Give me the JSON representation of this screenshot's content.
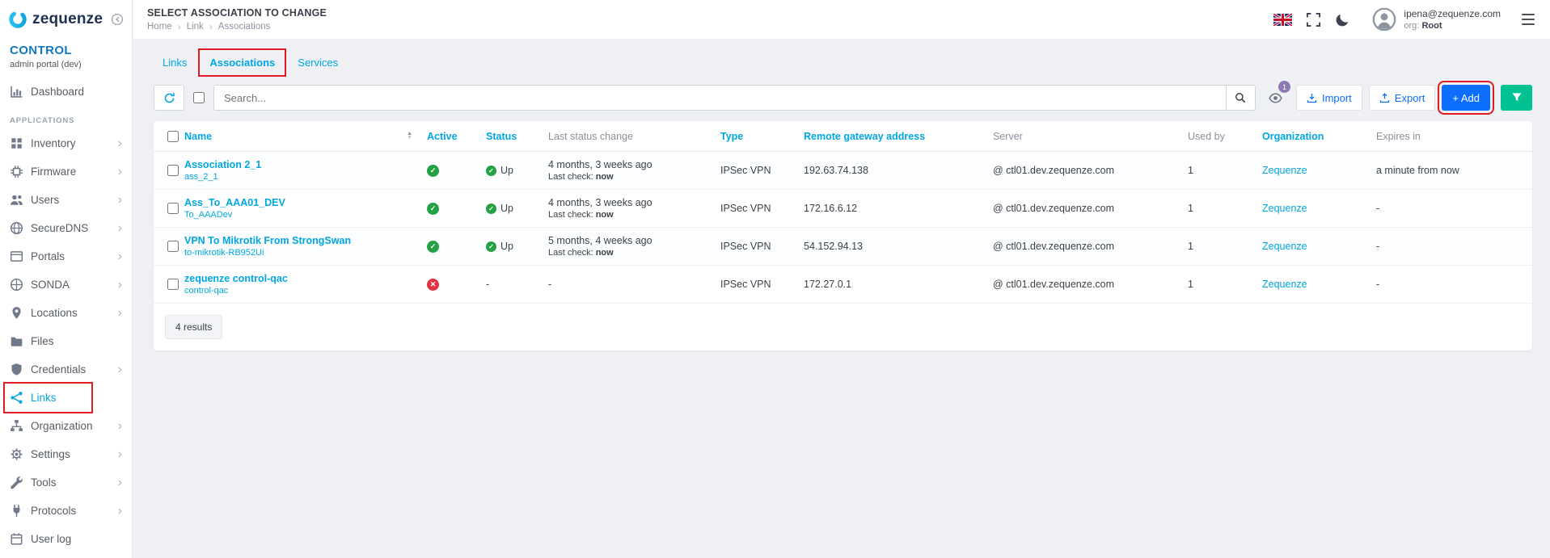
{
  "colors": {
    "accent": "#00a7e1",
    "primary": "#0c6efd",
    "success": "#23a144",
    "danger": "#e03444",
    "teal": "#00c292",
    "annotation": "#e01b24",
    "badge_purple": "#8d7ab5"
  },
  "brand": {
    "logo_text": "zequenze",
    "portal_title": "CONTROL",
    "portal_subtitle": "admin portal (dev)"
  },
  "sidebar": {
    "dashboard_label": "Dashboard",
    "section_label": "APPLICATIONS",
    "items": [
      {
        "label": "Inventory",
        "icon": "inventory",
        "chevron": true,
        "active": false,
        "annotated": false
      },
      {
        "label": "Firmware",
        "icon": "chip",
        "chevron": true,
        "active": false,
        "annotated": false
      },
      {
        "label": "Users",
        "icon": "users",
        "chevron": true,
        "active": false,
        "annotated": false
      },
      {
        "label": "SecureDNS",
        "icon": "globe",
        "chevron": true,
        "active": false,
        "annotated": false
      },
      {
        "label": "Portals",
        "icon": "window",
        "chevron": true,
        "active": false,
        "annotated": false
      },
      {
        "label": "SONDA",
        "icon": "globe2",
        "chevron": true,
        "active": false,
        "annotated": false
      },
      {
        "label": "Locations",
        "icon": "pin",
        "chevron": true,
        "active": false,
        "annotated": false
      },
      {
        "label": "Files",
        "icon": "folder",
        "chevron": false,
        "active": false,
        "annotated": false
      },
      {
        "label": "Credentials",
        "icon": "shield",
        "chevron": true,
        "active": false,
        "annotated": false
      },
      {
        "label": "Links",
        "icon": "share",
        "chevron": false,
        "active": true,
        "annotated": true
      },
      {
        "label": "Organization",
        "icon": "sitemap",
        "chevron": true,
        "active": false,
        "annotated": false
      },
      {
        "label": "Settings",
        "icon": "gear",
        "chevron": true,
        "active": false,
        "annotated": false
      },
      {
        "label": "Tools",
        "icon": "wrench",
        "chevron": true,
        "active": false,
        "annotated": false
      },
      {
        "label": "Protocols",
        "icon": "plug",
        "chevron": true,
        "active": false,
        "annotated": false
      },
      {
        "label": "User log",
        "icon": "calendar",
        "chevron": false,
        "active": false,
        "annotated": false
      }
    ]
  },
  "header": {
    "title": "SELECT ASSOCIATION TO CHANGE",
    "breadcrumb": [
      "Home",
      "Link",
      "Associations"
    ],
    "user": {
      "email": "ipena@zequenze.com",
      "org_label": "org:",
      "org_value": "Root"
    }
  },
  "tabs": [
    {
      "label": "Links",
      "active": false,
      "annotated": false
    },
    {
      "label": "Associations",
      "active": true,
      "annotated": true
    },
    {
      "label": "Services",
      "active": false,
      "annotated": false
    }
  ],
  "toolbar": {
    "search_placeholder": "Search...",
    "eye_badge": "1",
    "import_label": "Import",
    "export_label": "Export",
    "add_label": "+ Add"
  },
  "table": {
    "columns": [
      {
        "label": "Name",
        "sortable": true,
        "sort_icon": true
      },
      {
        "label": "Active",
        "sortable": true,
        "sort_icon": false
      },
      {
        "label": "Status",
        "sortable": true,
        "sort_icon": false
      },
      {
        "label": "Last status change",
        "sortable": false,
        "sort_icon": false
      },
      {
        "label": "Type",
        "sortable": true,
        "sort_icon": false
      },
      {
        "label": "Remote gateway address",
        "sortable": true,
        "sort_icon": false
      },
      {
        "label": "Server",
        "sortable": false,
        "sort_icon": false
      },
      {
        "label": "Used by",
        "sortable": false,
        "sort_icon": false
      },
      {
        "label": "Organization",
        "sortable": true,
        "sort_icon": false
      },
      {
        "label": "Expires in",
        "sortable": false,
        "sort_icon": false
      }
    ],
    "rows": [
      {
        "name": "Association 2_1",
        "subname": "ass_2_1",
        "active": true,
        "status": "Up",
        "last_change": "4 months, 3 weeks ago",
        "last_check_label": "Last check:",
        "last_check_value": "now",
        "type": "IPSec VPN",
        "gateway": "192.63.74.138",
        "server": "@ ctl01.dev.zequenze.com",
        "used_by": "1",
        "organization": "Zequenze",
        "expires": "a minute from now"
      },
      {
        "name": "Ass_To_AAA01_DEV",
        "subname": "To_AAADev",
        "active": true,
        "status": "Up",
        "last_change": "4 months, 3 weeks ago",
        "last_check_label": "Last check:",
        "last_check_value": "now",
        "type": "IPSec VPN",
        "gateway": "172.16.6.12",
        "server": "@ ctl01.dev.zequenze.com",
        "used_by": "1",
        "organization": "Zequenze",
        "expires": "-"
      },
      {
        "name": "VPN To Mikrotik From StrongSwan",
        "subname": "to-mikrotik-RB952Ui",
        "active": true,
        "status": "Up",
        "last_change": "5 months, 4 weeks ago",
        "last_check_label": "Last check:",
        "last_check_value": "now",
        "type": "IPSec VPN",
        "gateway": "54.152.94.13",
        "server": "@ ctl01.dev.zequenze.com",
        "used_by": "1",
        "organization": "Zequenze",
        "expires": "-"
      },
      {
        "name": "zequenze control-qac",
        "subname": "control-qac",
        "active": false,
        "status": "-",
        "last_change": "-",
        "last_check_label": "",
        "last_check_value": "",
        "type": "IPSec VPN",
        "gateway": "172.27.0.1",
        "server": "@ ctl01.dev.zequenze.com",
        "used_by": "1",
        "organization": "Zequenze",
        "expires": "-"
      }
    ],
    "footer_results": "4 results"
  }
}
